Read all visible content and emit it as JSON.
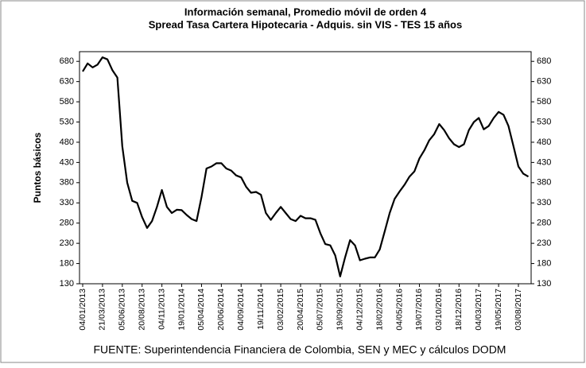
{
  "chart_data": {
    "type": "line",
    "title": "Información semanal, Promedio móvil de orden 4",
    "subtitle": "Spread Tasa Cartera Hipotecaria - Adquis. sin VIS -  TES 15 años",
    "y_label": "Puntos básicos",
    "source": "FUENTE: Superintendencia Financiera de Colombia, SEN y MEC y cálculos DODM",
    "categories": [
      "04/01/2013",
      null,
      null,
      null,
      "21/03/2013",
      null,
      null,
      null,
      "05/06/2013",
      null,
      null,
      null,
      "20/08/2013",
      null,
      null,
      null,
      "04/11/2013",
      null,
      null,
      null,
      "19/01/2014",
      null,
      null,
      null,
      "05/04/2014",
      null,
      null,
      null,
      "20/06/2014",
      null,
      null,
      null,
      "04/09/2014",
      null,
      null,
      null,
      "19/11/2014",
      null,
      null,
      null,
      "03/02/2015",
      null,
      null,
      null,
      "20/04/2015",
      null,
      null,
      null,
      "05/07/2015",
      null,
      null,
      null,
      "19/09/2015",
      null,
      null,
      null,
      "04/12/2015",
      null,
      null,
      null,
      "18/02/2016",
      null,
      null,
      null,
      "04/05/2016",
      null,
      null,
      null,
      "19/07/2016",
      null,
      null,
      null,
      "03/10/2016",
      null,
      null,
      null,
      "18/12/2016",
      null,
      null,
      null,
      "04/03/2017",
      null,
      null,
      null,
      "19/05/2017",
      null,
      null,
      null,
      "03/08/2017",
      null,
      null
    ],
    "values": [
      655,
      675,
      665,
      672,
      690,
      685,
      658,
      640,
      470,
      380,
      335,
      330,
      295,
      268,
      285,
      320,
      362,
      320,
      305,
      313,
      312,
      300,
      290,
      285,
      345,
      415,
      420,
      428,
      428,
      415,
      410,
      398,
      393,
      370,
      355,
      357,
      350,
      305,
      288,
      305,
      320,
      305,
      290,
      285,
      298,
      292,
      292,
      288,
      255,
      228,
      225,
      200,
      148,
      195,
      238,
      225,
      188,
      192,
      195,
      195,
      215,
      260,
      305,
      340,
      358,
      375,
      395,
      408,
      440,
      460,
      485,
      500,
      525,
      510,
      490,
      475,
      468,
      475,
      510,
      530,
      540,
      512,
      520,
      540,
      555,
      548,
      520,
      470,
      420,
      402,
      395
    ],
    "color": "#000000",
    "ylim": [
      130,
      704
    ],
    "yticks": [
      130,
      180,
      230,
      280,
      330,
      380,
      430,
      480,
      530,
      580,
      630,
      680
    ],
    "y2lim": [
      130,
      704
    ],
    "y2ticks": [
      130,
      180,
      230,
      280,
      330,
      380,
      430,
      480,
      530,
      580,
      630,
      680
    ]
  }
}
